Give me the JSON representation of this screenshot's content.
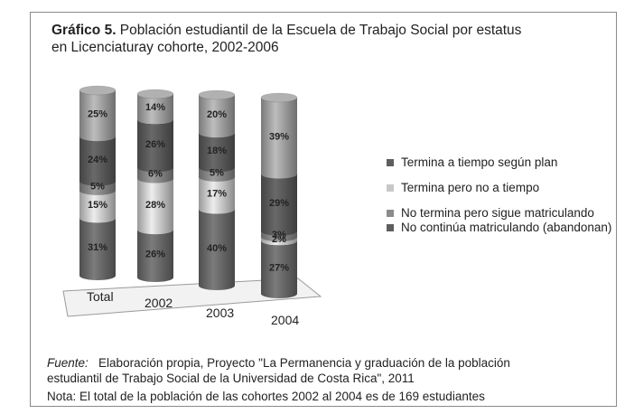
{
  "title": {
    "lead": "Gráfico 5.",
    "text": " Población estudiantil de la Escuela de Trabajo Social por estatus",
    "line2": "en Licenciaturay cohorte, 2002-2006"
  },
  "chart_data": {
    "type": "bar",
    "stacked": true,
    "style": "3d-cylinder",
    "categories": [
      "Total",
      "2002",
      "2003",
      "2004"
    ],
    "series": [
      {
        "name": "Termina a tiempo según plan",
        "values": [
          25,
          14,
          20,
          39
        ],
        "color": "#a9a9a9"
      },
      {
        "name": "Termina pero no a tiempo",
        "values": [
          24,
          26,
          18,
          29
        ],
        "color": "#5e5e5e"
      },
      {
        "name": "No termina pero sigue matriculando",
        "values": [
          5,
          6,
          5,
          3
        ],
        "color": "#8c8c8c"
      },
      {
        "name": "No continúa matriculando (abandonan)",
        "values": [
          15,
          28,
          17,
          2
        ],
        "color": "#d4d4d4"
      },
      {
        "name": "",
        "values": [
          31,
          26,
          40,
          27
        ],
        "color": "#6e6e6e"
      }
    ],
    "data_labels": [
      [
        "25%",
        "14%",
        "20%",
        "39%"
      ],
      [
        "24%",
        "26%",
        "18%",
        "29%"
      ],
      [
        "5%",
        "6%",
        "5%",
        "3%"
      ],
      [
        "15%",
        "28%",
        "17%",
        "2%"
      ],
      [
        "31%",
        "26%",
        "40%",
        "27%"
      ]
    ],
    "legend": {
      "position": "right",
      "items": [
        {
          "text": "Termina a tiempo según plan",
          "color": "#5e5e5e"
        },
        {
          "text": "Termina pero no a tiempo",
          "color": "#c8c8c8"
        },
        {
          "text": "No termina pero sigue matriculando",
          "color": "#8c8c8c"
        },
        {
          "text": "No continúa matriculando (abandonan)",
          "color": "#5e5e5e"
        }
      ]
    }
  },
  "source": {
    "label": "Fuente:",
    "line1": "Elaboración propia, Proyecto \"La Permanencia y graduación de la población",
    "line2": "estudiantil de Trabajo Social de la Universidad de Costa Rica\", 2011"
  },
  "note": "Nota: El total de la población de  las cohortes 2002 al 2004 es de 169 estudiantes"
}
